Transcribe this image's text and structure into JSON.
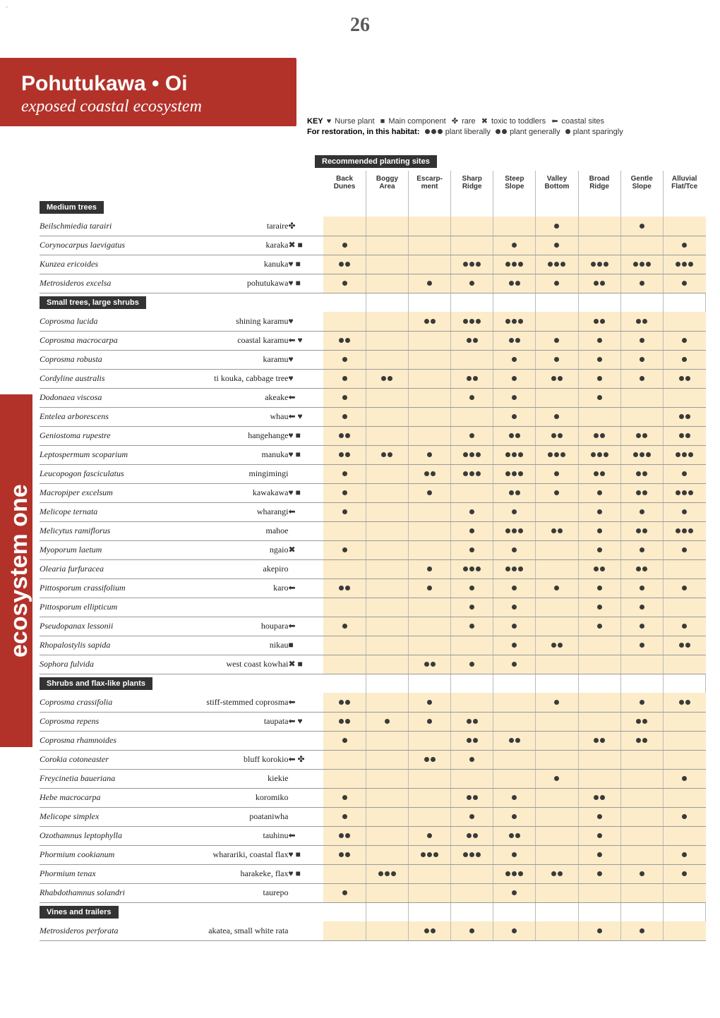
{
  "page_number": "26",
  "header": {
    "title": "Pohutukawa • Oi",
    "subtitle": "exposed coastal ecosystem"
  },
  "side_label": "ecosystem one",
  "key": {
    "prefix": "KEY",
    "items": [
      {
        "sym": "♥",
        "label": "Nurse plant"
      },
      {
        "sym": "■",
        "label": "Main component"
      },
      {
        "sym": "✤",
        "label": "rare"
      },
      {
        "sym": "✖",
        "label": "toxic to toddlers"
      },
      {
        "sym": "⬅",
        "label": "coastal sites"
      }
    ],
    "restoration_prefix": "For restoration, in this habitat:",
    "restoration_items": [
      {
        "dots": 3,
        "label": "plant liberally"
      },
      {
        "dots": 2,
        "label": "plant generally"
      },
      {
        "dots": 1,
        "label": "plant sparingly"
      }
    ]
  },
  "site_header": "Recommended planting sites",
  "columns": [
    {
      "l1": "Back",
      "l2": "Dunes"
    },
    {
      "l1": "Boggy",
      "l2": "Area"
    },
    {
      "l1": "Escarp-",
      "l2": "ment"
    },
    {
      "l1": "Sharp",
      "l2": "Ridge"
    },
    {
      "l1": "Steep",
      "l2": "Slope"
    },
    {
      "l1": "Valley",
      "l2": "Bottom"
    },
    {
      "l1": "Broad",
      "l2": "Ridge"
    },
    {
      "l1": "Gentle",
      "l2": "Slope"
    },
    {
      "l1": "Alluvial",
      "l2": "Flat/Tce"
    }
  ],
  "sections": [
    {
      "label": "Medium trees",
      "rows": [
        {
          "sci": "Beilschmiedia tarairi",
          "com": "taraire",
          "key": "✤",
          "v": [
            0,
            0,
            0,
            0,
            0,
            1,
            0,
            1,
            0
          ]
        },
        {
          "sci": "Corynocarpus laevigatus",
          "com": "karaka",
          "key": "✖ ■",
          "v": [
            1,
            0,
            0,
            0,
            1,
            1,
            0,
            0,
            1
          ]
        },
        {
          "sci": "Kunzea ericoides",
          "com": "kanuka",
          "key": "♥ ■",
          "v": [
            2,
            0,
            0,
            3,
            3,
            3,
            3,
            3,
            3
          ]
        },
        {
          "sci": "Metrosideros excelsa",
          "com": "pohutukawa",
          "key": "♥ ■",
          "v": [
            1,
            0,
            1,
            1,
            2,
            1,
            2,
            1,
            1
          ]
        }
      ]
    },
    {
      "label": "Small trees, large shrubs",
      "rows": [
        {
          "sci": "Coprosma lucida",
          "com": "shining karamu",
          "key": "♥",
          "v": [
            0,
            0,
            2,
            3,
            3,
            0,
            2,
            2,
            0
          ]
        },
        {
          "sci": "Coprosma macrocarpa",
          "com": "coastal karamu",
          "key": "⬅ ♥",
          "v": [
            2,
            0,
            0,
            2,
            2,
            1,
            1,
            1,
            1
          ]
        },
        {
          "sci": "Coprosma robusta",
          "com": "karamu",
          "key": "♥",
          "v": [
            1,
            0,
            0,
            0,
            1,
            1,
            1,
            1,
            1
          ]
        },
        {
          "sci": "Cordyline australis",
          "com": "ti kouka, cabbage tree",
          "key": "♥",
          "v": [
            1,
            2,
            0,
            2,
            1,
            2,
            1,
            1,
            2
          ]
        },
        {
          "sci": "Dodonaea viscosa",
          "com": "akeake",
          "key": "⬅",
          "v": [
            1,
            0,
            0,
            1,
            1,
            0,
            1,
            0,
            0
          ]
        },
        {
          "sci": "Entelea arborescens",
          "com": "whau",
          "key": "⬅ ♥",
          "v": [
            1,
            0,
            0,
            0,
            1,
            1,
            0,
            0,
            2
          ]
        },
        {
          "sci": "Geniostoma rupestre",
          "com": "hangehange",
          "key": "♥ ■",
          "v": [
            2,
            0,
            0,
            1,
            2,
            2,
            2,
            2,
            2
          ]
        },
        {
          "sci": "Leptospermum scoparium",
          "com": "manuka",
          "key": "♥ ■",
          "v": [
            2,
            2,
            1,
            3,
            3,
            3,
            3,
            3,
            3
          ]
        },
        {
          "sci": "Leucopogon fasciculatus",
          "com": "mingimingi",
          "key": "",
          "v": [
            1,
            0,
            2,
            3,
            3,
            1,
            2,
            2,
            1
          ]
        },
        {
          "sci": "Macropiper excelsum",
          "com": "kawakawa",
          "key": "♥ ■",
          "v": [
            1,
            0,
            1,
            0,
            2,
            1,
            1,
            2,
            3
          ]
        },
        {
          "sci": "Melicope ternata",
          "com": "wharangi",
          "key": "⬅",
          "v": [
            1,
            0,
            0,
            1,
            1,
            0,
            1,
            1,
            1
          ]
        },
        {
          "sci": "Melicytus ramiflorus",
          "com": "mahoe",
          "key": "",
          "v": [
            0,
            0,
            0,
            1,
            3,
            2,
            1,
            2,
            3
          ]
        },
        {
          "sci": "Myoporum laetum",
          "com": "ngaio",
          "key": "✖",
          "v": [
            1,
            0,
            0,
            1,
            1,
            0,
            1,
            1,
            1
          ]
        },
        {
          "sci": "Olearia furfuracea",
          "com": "akepiro",
          "key": "",
          "v": [
            0,
            0,
            1,
            3,
            3,
            0,
            2,
            2,
            0
          ]
        },
        {
          "sci": "Pittosporum crassifolium",
          "com": "karo",
          "key": "⬅",
          "v": [
            2,
            0,
            1,
            1,
            1,
            1,
            1,
            1,
            1
          ]
        },
        {
          "sci": "Pittosporum ellipticum",
          "com": "",
          "key": "",
          "v": [
            0,
            0,
            0,
            1,
            1,
            0,
            1,
            1,
            0
          ]
        },
        {
          "sci": "Pseudopanax lessonii",
          "com": "houpara",
          "key": "⬅",
          "v": [
            1,
            0,
            0,
            1,
            1,
            0,
            1,
            1,
            1
          ]
        },
        {
          "sci": "Rhopalostylis sapida",
          "com": "nikau",
          "key": "■",
          "v": [
            0,
            0,
            0,
            0,
            1,
            2,
            0,
            1,
            2
          ]
        },
        {
          "sci": "Sophora fulvida",
          "com": "west coast kowhai",
          "key": "✖ ■",
          "v": [
            0,
            0,
            2,
            1,
            1,
            0,
            0,
            0,
            0
          ]
        }
      ]
    },
    {
      "label": "Shrubs and flax-like plants",
      "rows": [
        {
          "sci": "Coprosma crassifolia",
          "com": "stiff-stemmed coprosma",
          "key": "⬅",
          "v": [
            2,
            0,
            1,
            0,
            0,
            1,
            0,
            1,
            2
          ]
        },
        {
          "sci": "Coprosma repens",
          "com": "taupata",
          "key": "⬅ ♥",
          "v": [
            2,
            1,
            1,
            2,
            0,
            0,
            0,
            2,
            0
          ]
        },
        {
          "sci": "Coprosma rhamnoides",
          "com": "",
          "key": "",
          "v": [
            1,
            0,
            0,
            2,
            2,
            0,
            2,
            2,
            0
          ]
        },
        {
          "sci": "Corokia cotoneaster",
          "com": "bluff korokio",
          "key": "⬅ ✤",
          "v": [
            0,
            0,
            2,
            1,
            0,
            0,
            0,
            0,
            0
          ]
        },
        {
          "sci": "Freycinetia baueriana",
          "com": "kiekie",
          "key": "",
          "v": [
            0,
            0,
            0,
            0,
            0,
            1,
            0,
            0,
            1
          ]
        },
        {
          "sci": "Hebe macrocarpa",
          "com": "koromiko",
          "key": "",
          "v": [
            1,
            0,
            0,
            2,
            1,
            0,
            2,
            0,
            0
          ]
        },
        {
          "sci": "Melicope simplex",
          "com": "poataniwha",
          "key": "",
          "v": [
            1,
            0,
            0,
            1,
            1,
            0,
            1,
            0,
            1
          ]
        },
        {
          "sci": "Ozothamnus leptophylla",
          "com": "tauhinu",
          "key": "⬅",
          "v": [
            2,
            0,
            1,
            2,
            2,
            0,
            1,
            0,
            0
          ]
        },
        {
          "sci": "Phormium cookianum",
          "com": "wharariki, coastal flax",
          "key": "♥ ■",
          "v": [
            2,
            0,
            3,
            3,
            1,
            0,
            1,
            0,
            1
          ]
        },
        {
          "sci": "Phormium tenax",
          "com": "harakeke, flax",
          "key": "♥ ■",
          "v": [
            0,
            3,
            0,
            0,
            3,
            2,
            1,
            1,
            1
          ]
        },
        {
          "sci": "Rhabdothamnus solandri",
          "com": "taurepo",
          "key": "",
          "v": [
            1,
            0,
            0,
            0,
            1,
            0,
            0,
            0,
            0
          ]
        }
      ]
    },
    {
      "label": "Vines and trailers",
      "rows": [
        {
          "sci": "Metrosideros perforata",
          "com": "akatea, small white rata",
          "key": "",
          "v": [
            0,
            0,
            2,
            1,
            1,
            0,
            1,
            1,
            0
          ]
        }
      ]
    }
  ],
  "colors": {
    "brand": "#b2322a",
    "cell_bg": "#fcecc9",
    "dot": "#3a3a3a",
    "rule": "#999999"
  }
}
